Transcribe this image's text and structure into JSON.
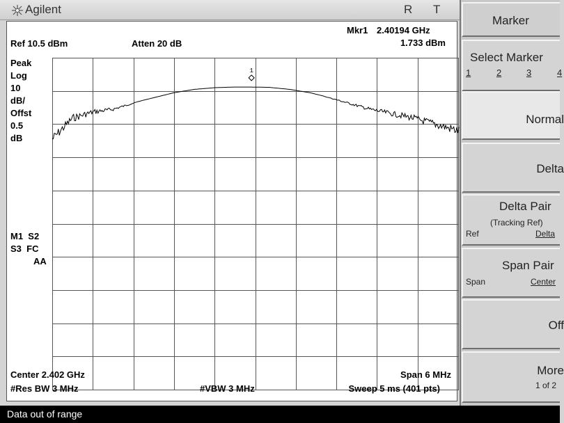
{
  "header": {
    "brand": "Agilent",
    "indicator_r": "R",
    "indicator_t": "T"
  },
  "screen": {
    "marker_readout_label": "Mkr1",
    "marker_freq": "2.40194 GHz",
    "marker_amp": "1.733 dBm",
    "ref_level": "Ref 10.5 dBm",
    "atten": "Atten 20 dB",
    "side_labels": [
      "Peak",
      "Log",
      "10",
      "dB/",
      "Offst",
      "0.5",
      "dB"
    ],
    "status_flags_1": "M1  S2",
    "status_flags_2": "S3  FC",
    "status_flags_3": "AA",
    "marker_tag": "1",
    "center": "Center 2.402 GHz",
    "span": "Span 6 MHz",
    "res_bw": "#Res BW 3 MHz",
    "vbw": "#VBW 3 MHz",
    "sweep": "Sweep 5 ms (401 pts)"
  },
  "status_bar": {
    "message": "Data out of range"
  },
  "softkeys": {
    "title": "Marker",
    "select_marker": {
      "label": "Select Marker",
      "options": [
        "1",
        "2",
        "3",
        "4"
      ]
    },
    "normal": "Normal",
    "delta": "Delta",
    "delta_pair": {
      "label": "Delta Pair",
      "sub": "(Tracking Ref)",
      "left": "Ref",
      "right": "Delta"
    },
    "span_pair": {
      "label": "Span Pair",
      "left": "Span",
      "right": "Center"
    },
    "off": "Off",
    "more": {
      "label": "More",
      "sub": "1 of 2"
    }
  },
  "chart_data": {
    "type": "line",
    "xlabel": "",
    "ylabel": "",
    "x_unit": "GHz",
    "y_unit": "dBm",
    "xlim": [
      2.399,
      2.405
    ],
    "ylim": [
      -89.5,
      10.5
    ],
    "grid": true,
    "series": [
      {
        "x": [
          2.399,
          2.3993,
          2.3996,
          2.3999,
          2.4002,
          2.4005,
          2.4008,
          2.4011,
          2.4014,
          2.4017,
          2.4019,
          2.4022,
          2.4025,
          2.4028,
          2.4031,
          2.4034,
          2.4037,
          2.404,
          2.4043,
          2.4046,
          2.405
        ],
        "y": [
          -12.5,
          -6.5,
          -5.0,
          -4.5,
          -3.0,
          -1.5,
          0.0,
          1.0,
          1.5,
          1.7,
          1.7,
          1.6,
          1.0,
          0.0,
          -1.5,
          -3.0,
          -4.5,
          -5.5,
          -6.5,
          -8.0,
          -10.0
        ]
      }
    ],
    "markers": [
      {
        "name": "1",
        "x": 2.40194,
        "y": 1.733
      }
    ]
  }
}
